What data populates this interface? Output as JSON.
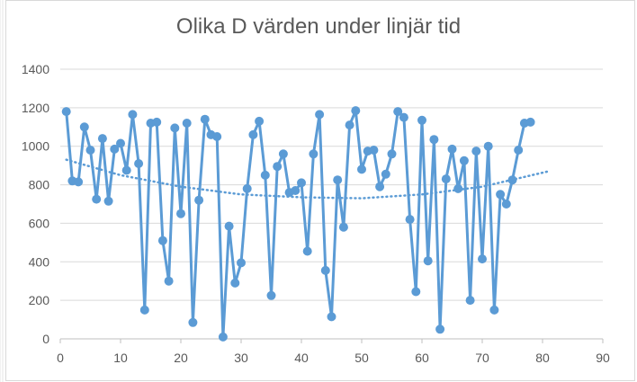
{
  "chart_data": {
    "type": "scatter",
    "title": "Olika D värden under linjär tid",
    "xlabel": "",
    "ylabel": "",
    "xlim": [
      0,
      90
    ],
    "ylim": [
      0,
      1400
    ],
    "x_ticks": [
      0,
      10,
      20,
      30,
      40,
      50,
      60,
      70,
      80,
      90
    ],
    "y_ticks": [
      0,
      200,
      400,
      600,
      800,
      1000,
      1200,
      1400
    ],
    "grid": "horizontal",
    "legend": "none",
    "series_color": "#5b9bd5",
    "trendline": {
      "type": "polynomial",
      "style": "dotted",
      "points": [
        [
          1,
          930
        ],
        [
          10,
          850
        ],
        [
          20,
          790
        ],
        [
          30,
          750
        ],
        [
          40,
          735
        ],
        [
          50,
          730
        ],
        [
          60,
          750
        ],
        [
          70,
          790
        ],
        [
          81,
          870
        ]
      ]
    },
    "series": [
      {
        "x": [
          1,
          2,
          3,
          4,
          5,
          6,
          7,
          8,
          9,
          10,
          11,
          12,
          13,
          14,
          15,
          16,
          17,
          18,
          19,
          20,
          21,
          22,
          23,
          24,
          25,
          26,
          27,
          28,
          29,
          30,
          31,
          32,
          33,
          34,
          35,
          36,
          37,
          38,
          39,
          40,
          41,
          42,
          43,
          44,
          45,
          46,
          47,
          48,
          49,
          50,
          51,
          52,
          53,
          54,
          55,
          56,
          57,
          58,
          59,
          60,
          61,
          62,
          63,
          64,
          65,
          66,
          67,
          68,
          69,
          70,
          71,
          72,
          73,
          74,
          75,
          76,
          77,
          78
        ],
        "values": [
          1180,
          820,
          815,
          1100,
          980,
          725,
          1040,
          715,
          985,
          1015,
          875,
          1165,
          910,
          150,
          1120,
          1125,
          510,
          300,
          1095,
          650,
          1120,
          85,
          720,
          1140,
          1060,
          1050,
          10,
          585,
          290,
          395,
          780,
          1060,
          1130,
          850,
          225,
          895,
          960,
          760,
          770,
          810,
          455,
          960,
          1165,
          355,
          115,
          825,
          580,
          1110,
          1185,
          880,
          975,
          980,
          790,
          855,
          960,
          1180,
          1150,
          620,
          245,
          1135,
          405,
          1035,
          50,
          830,
          985,
          780,
          925,
          200,
          975,
          415,
          1000,
          150,
          750,
          700,
          825,
          980,
          1120,
          1125
        ]
      }
    ]
  }
}
